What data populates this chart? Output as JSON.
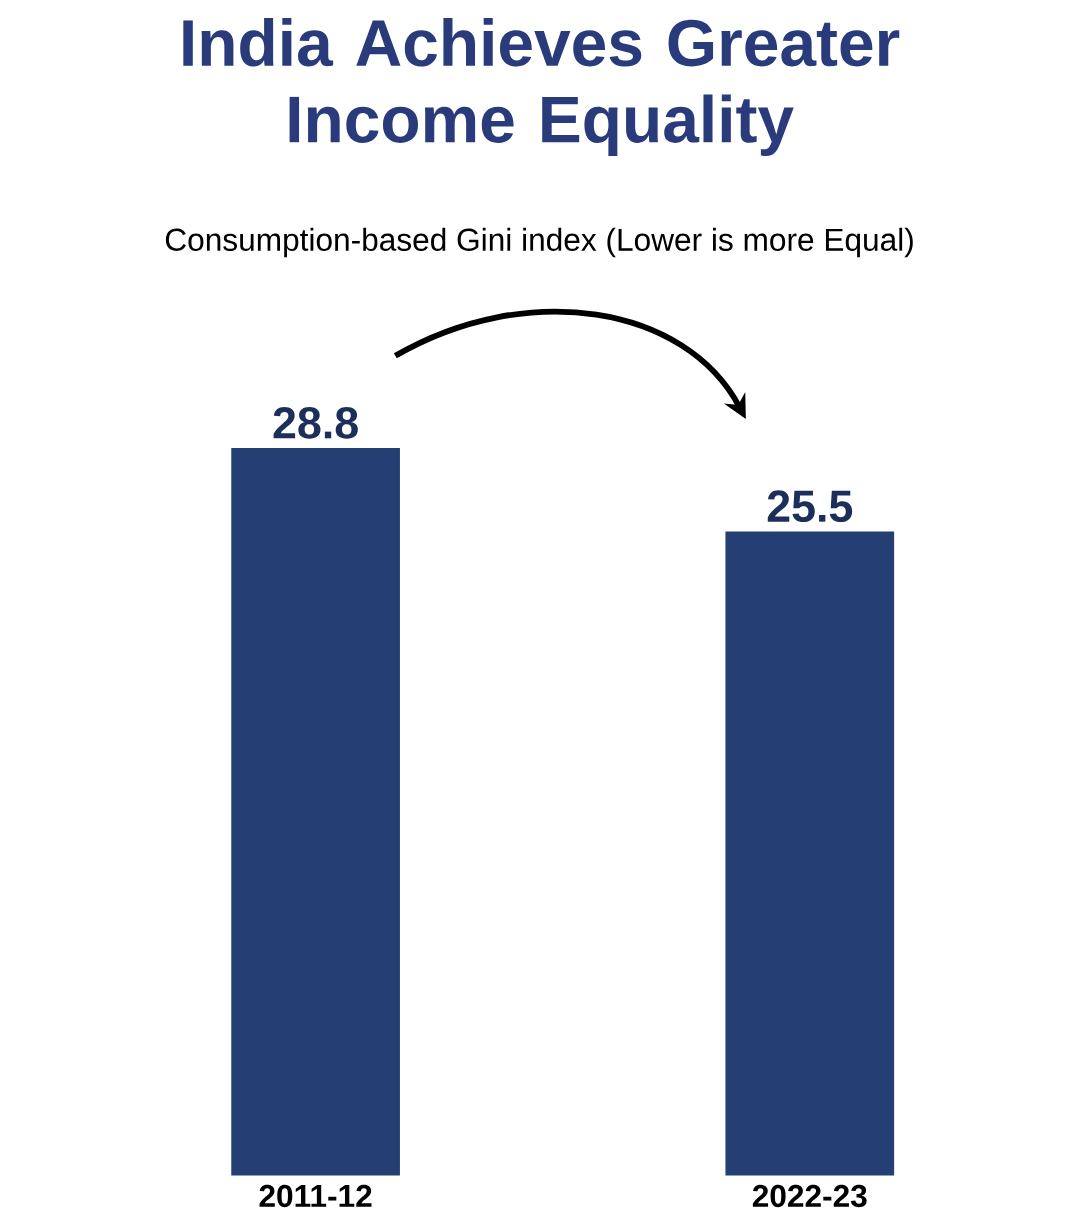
{
  "chart_data": {
    "type": "bar",
    "title": "India Achieves Greater Income Equality",
    "subtitle": "Consumption-based Gini index (Lower is more Equal)",
    "categories": [
      "2011-12",
      "2022-23"
    ],
    "values": [
      28.8,
      25.5
    ],
    "color": "#243f73",
    "data_labels": true
  }
}
